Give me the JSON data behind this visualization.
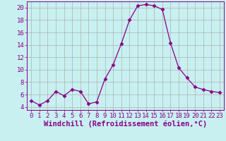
{
  "x": [
    0,
    1,
    2,
    3,
    4,
    5,
    6,
    7,
    8,
    9,
    10,
    11,
    12,
    13,
    14,
    15,
    16,
    17,
    18,
    19,
    20,
    21,
    22,
    23
  ],
  "y": [
    5.0,
    4.3,
    5.0,
    6.5,
    5.8,
    6.8,
    6.5,
    4.5,
    4.8,
    8.5,
    10.8,
    14.2,
    18.0,
    20.3,
    20.5,
    20.3,
    19.7,
    14.3,
    10.3,
    8.7,
    7.2,
    6.8,
    6.5,
    6.3
  ],
  "line_color": "#880088",
  "marker": "D",
  "marker_size": 2.5,
  "bg_color": "#c8f0f0",
  "grid_color": "#b0b0b0",
  "xlabel": "Windchill (Refroidissement éolien,°C)",
  "ylabel": "",
  "xlim": [
    -0.5,
    23.5
  ],
  "ylim": [
    3.5,
    21.0
  ],
  "yticks": [
    4,
    6,
    8,
    10,
    12,
    14,
    16,
    18,
    20
  ],
  "xticks": [
    0,
    1,
    2,
    3,
    4,
    5,
    6,
    7,
    8,
    9,
    10,
    11,
    12,
    13,
    14,
    15,
    16,
    17,
    18,
    19,
    20,
    21,
    22,
    23
  ],
  "font_color": "#880088",
  "tick_font_size": 6.5,
  "label_font_size": 7.5
}
